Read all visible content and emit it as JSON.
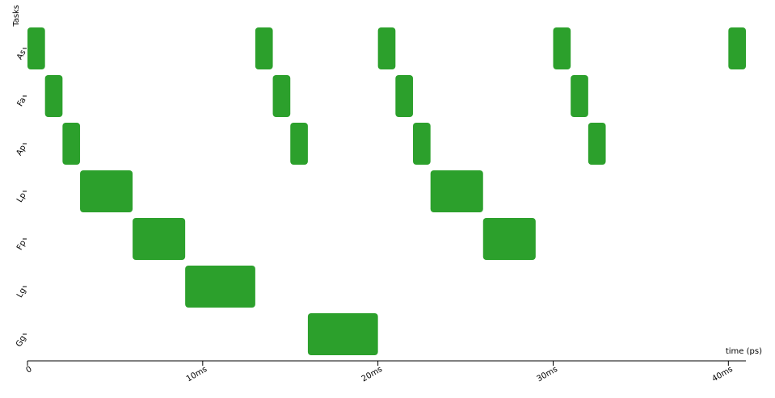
{
  "chart_data": {
    "type": "gantt",
    "y_label": "Tasks",
    "x_label": "time (ps)",
    "color": "#2ca02c",
    "xlim": [
      0,
      41
    ],
    "xticks": [
      0,
      {
        "value": 10,
        "label": "10ms"
      },
      {
        "value": 20,
        "label": "20ms"
      },
      {
        "value": 30,
        "label": "30ms"
      },
      {
        "value": 40,
        "label": "40ms"
      }
    ],
    "tasks": [
      {
        "name": "As",
        "segments": [
          [
            0,
            1
          ],
          [
            13,
            14
          ],
          [
            20,
            21
          ],
          [
            30,
            31
          ],
          [
            40,
            41
          ]
        ]
      },
      {
        "name": "Fa",
        "segments": [
          [
            1,
            2
          ],
          [
            14,
            15
          ],
          [
            21,
            22
          ],
          [
            31,
            32
          ]
        ]
      },
      {
        "name": "Ap",
        "segments": [
          [
            2,
            3
          ],
          [
            15,
            16
          ],
          [
            22,
            23
          ],
          [
            32,
            33
          ]
        ]
      },
      {
        "name": "Lp",
        "segments": [
          [
            3,
            6
          ],
          [
            23,
            26
          ]
        ]
      },
      {
        "name": "Fp",
        "segments": [
          [
            6,
            9
          ],
          [
            26,
            29
          ]
        ]
      },
      {
        "name": "Lg",
        "segments": [
          [
            9,
            13
          ]
        ]
      },
      {
        "name": "Gg",
        "segments": [
          [
            16,
            20
          ]
        ]
      }
    ]
  }
}
